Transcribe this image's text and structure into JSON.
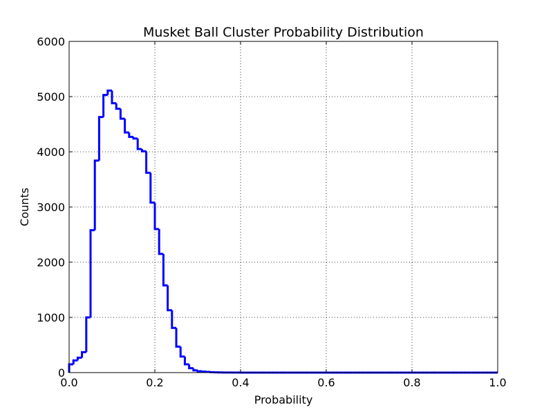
{
  "chart_data": {
    "type": "histogram",
    "title": "Musket Ball Cluster Probability Distribution",
    "xlabel": "Probability",
    "ylabel": "Counts",
    "xlim": [
      0.0,
      1.0
    ],
    "ylim": [
      0,
      6000
    ],
    "xticks": [
      0.0,
      0.2,
      0.4,
      0.6,
      0.8,
      1.0
    ],
    "xtick_labels": [
      "0.0",
      "0.2",
      "0.4",
      "0.6",
      "0.8",
      "1.0"
    ],
    "yticks": [
      0,
      1000,
      2000,
      3000,
      4000,
      5000,
      6000
    ],
    "ytick_labels": [
      "0",
      "1000",
      "2000",
      "3000",
      "4000",
      "5000",
      "6000"
    ],
    "grid": true,
    "histtype": "step",
    "line_color": "#0000ff",
    "bin_width": 0.01,
    "bin_start": 0.0,
    "values": [
      150,
      220,
      270,
      370,
      1000,
      2580,
      3840,
      4630,
      5030,
      5110,
      4880,
      4780,
      4600,
      4350,
      4270,
      4240,
      4050,
      4010,
      3620,
      3080,
      2600,
      2150,
      1580,
      1130,
      810,
      470,
      290,
      150,
      80,
      40,
      25,
      18,
      12,
      8,
      5,
      3,
      2,
      1,
      1,
      1,
      0,
      0,
      0,
      0,
      0,
      0,
      0,
      0,
      0,
      0,
      0,
      0,
      0,
      0,
      0,
      0,
      0,
      0,
      0,
      0,
      0,
      0,
      0,
      0,
      0,
      0,
      0,
      0,
      0,
      0,
      0,
      0,
      0,
      0,
      0,
      0,
      0,
      0,
      0,
      0,
      0,
      0,
      0,
      0,
      0,
      0,
      0,
      0,
      0,
      0,
      0,
      0,
      0,
      0,
      0,
      0,
      0,
      0,
      0,
      0
    ]
  }
}
